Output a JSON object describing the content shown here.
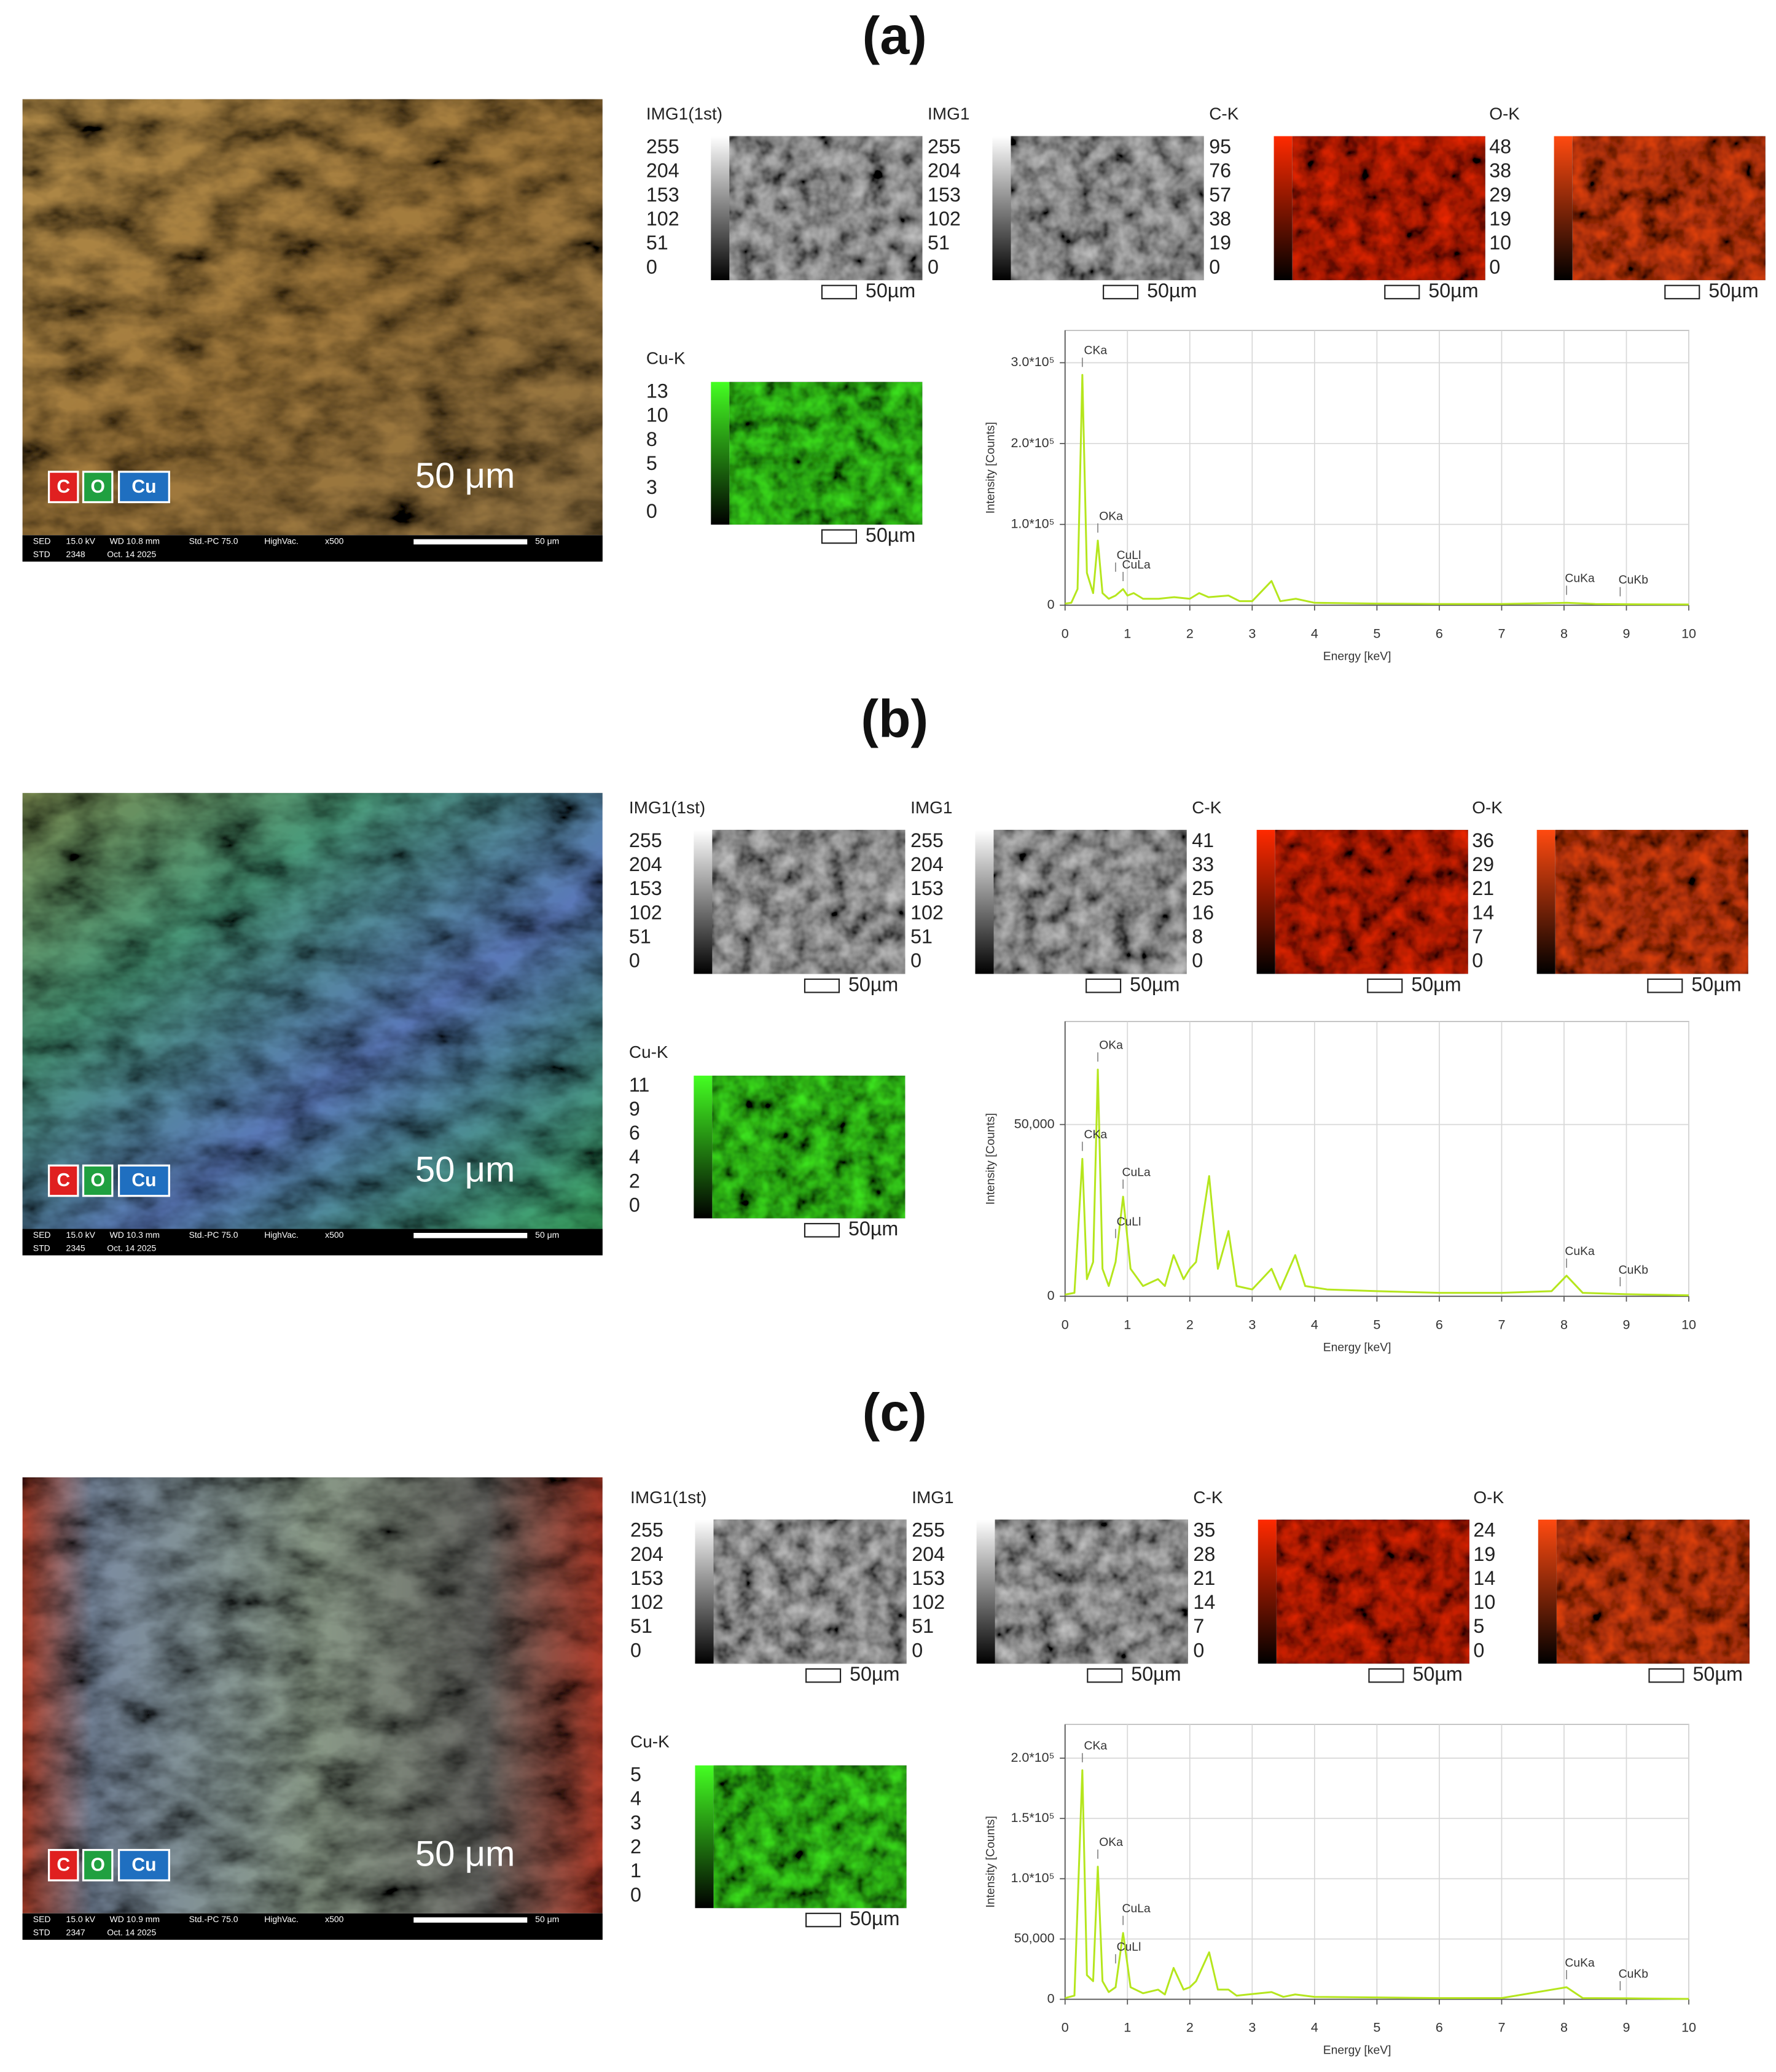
{
  "panels": [
    {
      "label": "(a)",
      "sem": {
        "legend": [
          "C",
          "O",
          "Cu"
        ],
        "scale": "50 μm",
        "info1": [
          "SED",
          "15.0 kV",
          "WD 10.8 mm",
          "Std.-PC 75.0",
          "HighVac.",
          "x500"
        ],
        "info2": [
          "STD",
          "2348",
          "Oct. 14 2025"
        ],
        "bar_label": "50 μm"
      },
      "maps": [
        {
          "name": "IMG1(1st)",
          "scale": [
            255,
            204,
            153,
            102,
            51,
            0
          ],
          "color": "#ffffff",
          "bar": "50µm"
        },
        {
          "name": "IMG1",
          "scale": [
            255,
            204,
            153,
            102,
            51,
            0
          ],
          "color": "#ffffff",
          "bar": "50µm"
        },
        {
          "name": "C-K",
          "scale": [
            95,
            76,
            57,
            38,
            19,
            0
          ],
          "color": "#ff2a00",
          "bar": "50µm"
        },
        {
          "name": "O-K",
          "scale": [
            48,
            38,
            29,
            19,
            10,
            0
          ],
          "color": "#ff4a10",
          "bar": "50µm"
        }
      ],
      "cu": {
        "name": "Cu-K",
        "scale": [
          13,
          10,
          8,
          5,
          3,
          0
        ],
        "color": "#44ff22",
        "bar": "50µm"
      }
    },
    {
      "label": "(b)",
      "sem": {
        "legend": [
          "C",
          "O",
          "Cu"
        ],
        "scale": "50 μm",
        "info1": [
          "SED",
          "15.0 kV",
          "WD 10.3 mm",
          "Std.-PC 75.0",
          "HighVac.",
          "x500"
        ],
        "info2": [
          "STD",
          "2345",
          "Oct. 14 2025"
        ],
        "bar_label": "50 μm"
      },
      "maps": [
        {
          "name": "IMG1(1st)",
          "scale": [
            255,
            204,
            153,
            102,
            51,
            0
          ],
          "color": "#ffffff",
          "bar": "50µm"
        },
        {
          "name": "IMG1",
          "scale": [
            255,
            204,
            153,
            102,
            51,
            0
          ],
          "color": "#ffffff",
          "bar": "50µm"
        },
        {
          "name": "C-K",
          "scale": [
            41,
            33,
            25,
            16,
            8,
            0
          ],
          "color": "#ff2a00",
          "bar": "50µm"
        },
        {
          "name": "O-K",
          "scale": [
            36,
            29,
            21,
            14,
            7,
            0
          ],
          "color": "#ff4a10",
          "bar": "50µm"
        }
      ],
      "cu": {
        "name": "Cu-K",
        "scale": [
          11,
          9,
          6,
          4,
          2,
          0
        ],
        "color": "#44ff22",
        "bar": "50µm"
      }
    },
    {
      "label": "(c)",
      "sem": {
        "legend": [
          "C",
          "O",
          "Cu"
        ],
        "scale": "50 μm",
        "info1": [
          "SED",
          "15.0 kV",
          "WD 10.9 mm",
          "Std.-PC 75.0",
          "HighVac.",
          "x500"
        ],
        "info2": [
          "STD",
          "2347",
          "Oct. 14 2025"
        ],
        "bar_label": "50 μm"
      },
      "maps": [
        {
          "name": "IMG1(1st)",
          "scale": [
            255,
            204,
            153,
            102,
            51,
            0
          ],
          "color": "#ffffff",
          "bar": "50µm"
        },
        {
          "name": "IMG1",
          "scale": [
            255,
            204,
            153,
            102,
            51,
            0
          ],
          "color": "#ffffff",
          "bar": "50µm"
        },
        {
          "name": "C-K",
          "scale": [
            35,
            28,
            21,
            14,
            7,
            0
          ],
          "color": "#ff2a00",
          "bar": "50µm"
        },
        {
          "name": "O-K",
          "scale": [
            24,
            19,
            14,
            10,
            5,
            0
          ],
          "color": "#ff4a10",
          "bar": "50µm"
        }
      ],
      "cu": {
        "name": "Cu-K",
        "scale": [
          5,
          4,
          3,
          2,
          1,
          0
        ],
        "color": "#44ff22",
        "bar": "50µm"
      }
    }
  ],
  "chart_data": [
    {
      "type": "line",
      "xlabel": "Energy [keV]",
      "ylabel": "Intensity [Counts]",
      "x": [
        0,
        0.1,
        0.2,
        0.277,
        0.35,
        0.45,
        0.525,
        0.6,
        0.7,
        0.81,
        0.93,
        1.0,
        1.1,
        1.25,
        1.5,
        1.75,
        2.0,
        2.15,
        2.3,
        2.62,
        2.8,
        3.0,
        3.31,
        3.45,
        3.7,
        4.0,
        5,
        6,
        7,
        8.04,
        8.5,
        9,
        10
      ],
      "series": [
        {
          "color": "#b5e61d",
          "values": [
            2000,
            3000,
            20000,
            285000,
            40000,
            15000,
            80000,
            15000,
            8000,
            12000,
            20000,
            12000,
            15000,
            8000,
            8000,
            10000,
            8000,
            15000,
            10000,
            12000,
            5000,
            5000,
            30000,
            5000,
            8000,
            3000,
            2000,
            1500,
            1500,
            3000,
            1500,
            1200,
            1000
          ]
        }
      ],
      "xlim": [
        0,
        10
      ],
      "ylim": [
        0,
        340000
      ],
      "xticks": [
        0,
        1,
        2,
        3,
        4,
        5,
        6,
        7,
        8,
        9,
        10
      ],
      "yticks": [
        0,
        {
          "value": 100000,
          "label": "1.0*10⁵"
        },
        {
          "value": 200000,
          "label": "2.0*10⁵"
        },
        {
          "value": 300000,
          "label": "3.0*10⁵"
        }
      ],
      "grid": true,
      "annotations": [
        {
          "text": "CKa",
          "x": 0.277
        },
        {
          "text": "OKa",
          "x": 0.525
        },
        {
          "text": "CuLl",
          "x": 0.81
        },
        {
          "text": "CuLa",
          "x": 0.93
        },
        {
          "text": "CuKa",
          "x": 8.04
        },
        {
          "text": "CuKb",
          "x": 8.9
        }
      ]
    },
    {
      "type": "line",
      "xlabel": "Energy [keV]",
      "ylabel": "Intensity [Counts]",
      "x": [
        0,
        0.15,
        0.277,
        0.35,
        0.45,
        0.525,
        0.6,
        0.7,
        0.81,
        0.93,
        1.05,
        1.25,
        1.49,
        1.6,
        1.74,
        1.9,
        2.0,
        2.1,
        2.31,
        2.45,
        2.62,
        2.75,
        3.0,
        3.31,
        3.45,
        3.69,
        3.85,
        4.2,
        5,
        6,
        7,
        7.8,
        8.04,
        8.3,
        9,
        10
      ],
      "series": [
        {
          "color": "#b5e61d",
          "values": [
            500,
            1000,
            40000,
            5000,
            10000,
            66000,
            8000,
            3000,
            10000,
            29000,
            8000,
            3000,
            5000,
            3000,
            12000,
            5000,
            8000,
            10000,
            35000,
            8000,
            19000,
            3000,
            2000,
            8000,
            2000,
            12000,
            3000,
            2000,
            1500,
            1000,
            1000,
            1500,
            6000,
            1000,
            600,
            300
          ]
        }
      ],
      "xlim": [
        0,
        10
      ],
      "ylim": [
        0,
        80000
      ],
      "xticks": [
        0,
        1,
        2,
        3,
        4,
        5,
        6,
        7,
        8,
        9,
        10
      ],
      "yticks": [
        0,
        {
          "value": 50000,
          "label": "50,000"
        }
      ],
      "grid": true,
      "annotations": [
        {
          "text": "CKa",
          "x": 0.277
        },
        {
          "text": "OKa",
          "x": 0.525
        },
        {
          "text": "CuLl",
          "x": 0.81
        },
        {
          "text": "CuLa",
          "x": 0.93
        },
        {
          "text": "CuKa",
          "x": 8.04
        },
        {
          "text": "CuKb",
          "x": 8.9
        }
      ]
    },
    {
      "type": "line",
      "xlabel": "Energy [keV]",
      "ylabel": "Intensity [Counts]",
      "x": [
        0,
        0.15,
        0.277,
        0.35,
        0.45,
        0.525,
        0.6,
        0.7,
        0.81,
        0.93,
        1.05,
        1.25,
        1.49,
        1.6,
        1.74,
        1.9,
        2.0,
        2.1,
        2.31,
        2.45,
        2.62,
        2.75,
        3.31,
        3.5,
        3.69,
        4.0,
        5,
        6,
        7,
        8.04,
        8.3,
        9,
        10
      ],
      "series": [
        {
          "color": "#b5e61d",
          "values": [
            1000,
            3000,
            190000,
            20000,
            15000,
            110000,
            15000,
            6000,
            10000,
            55000,
            10000,
            5000,
            8000,
            4000,
            26000,
            8000,
            10000,
            15000,
            39000,
            8000,
            8000,
            3000,
            6000,
            2000,
            4000,
            2000,
            1500,
            1000,
            1000,
            10000,
            1000,
            800,
            300
          ]
        }
      ],
      "xlim": [
        0,
        10
      ],
      "ylim": [
        0,
        228000
      ],
      "xticks": [
        0,
        1,
        2,
        3,
        4,
        5,
        6,
        7,
        8,
        9,
        10
      ],
      "yticks": [
        0,
        {
          "value": 50000,
          "label": "50,000"
        },
        {
          "value": 100000,
          "label": "1.0*10⁵"
        },
        {
          "value": 150000,
          "label": "1.5*10⁵"
        },
        {
          "value": 200000,
          "label": "2.0*10⁵"
        }
      ],
      "grid": true,
      "annotations": [
        {
          "text": "CKa",
          "x": 0.277
        },
        {
          "text": "OKa",
          "x": 0.525
        },
        {
          "text": "CuLl",
          "x": 0.81
        },
        {
          "text": "CuLa",
          "x": 0.93
        },
        {
          "text": "CuKa",
          "x": 8.04
        },
        {
          "text": "CuKb",
          "x": 8.9
        }
      ]
    }
  ]
}
